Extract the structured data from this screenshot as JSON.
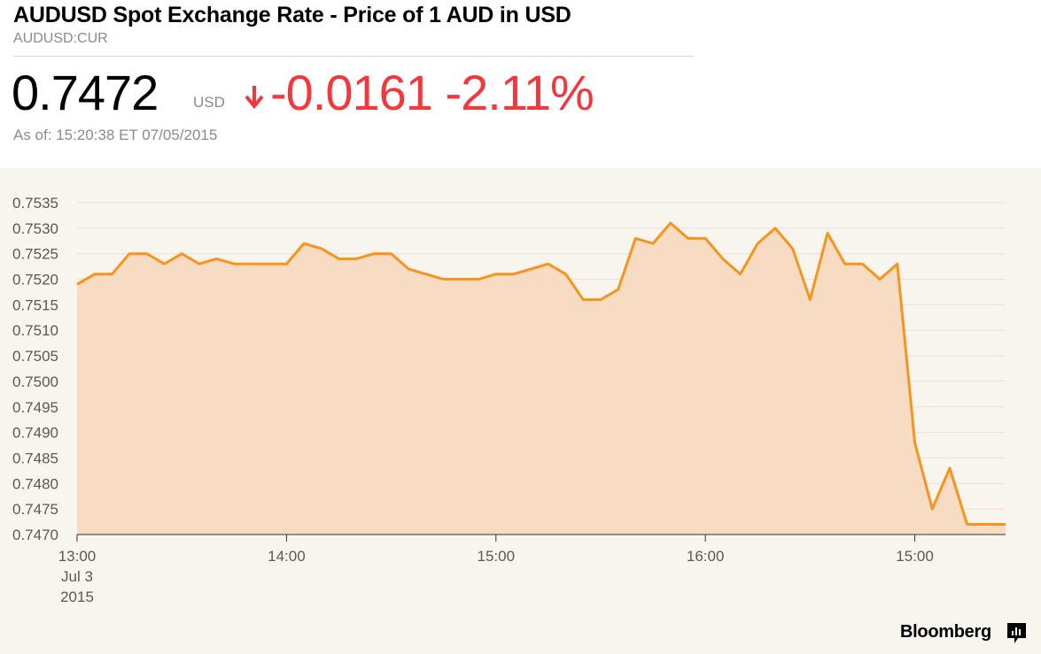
{
  "header": {
    "title": "AUDUSD Spot Exchange Rate - Price of 1 AUD in USD",
    "ticker": "AUDUSD:CUR",
    "price": "0.7472",
    "currency": "USD",
    "change": "-0.0161 -2.11%",
    "as_of": "As of: 15:20:38 ET 07/05/2015",
    "change_color": "#f2373d"
  },
  "brand": {
    "name": "Bloomberg",
    "icon": "bloomberg-bar-icon"
  },
  "chart_data": {
    "type": "area",
    "ylim": [
      0.747,
      0.7535
    ],
    "yticks": [
      "0.7535",
      "0.7530",
      "0.7525",
      "0.7520",
      "0.7515",
      "0.7510",
      "0.7505",
      "0.7500",
      "0.7495",
      "0.7490",
      "0.7485",
      "0.7480",
      "0.7475",
      "0.7470"
    ],
    "xticks": [
      {
        "label": "13:00",
        "t": 0
      },
      {
        "label": "14:00",
        "t": 60
      },
      {
        "label": "15:00",
        "t": 120
      },
      {
        "label": "16:00",
        "t": 180
      },
      {
        "label": "15:00",
        "t": 240
      }
    ],
    "xtick_sublabels": [
      "Jul 3",
      "2015"
    ],
    "t_range": [
      0,
      266
    ],
    "x_minutes": [
      0,
      5,
      10,
      15,
      20,
      25,
      30,
      35,
      40,
      45,
      50,
      55,
      60,
      65,
      70,
      75,
      80,
      85,
      90,
      95,
      100,
      105,
      110,
      115,
      120,
      125,
      130,
      135,
      140,
      145,
      150,
      155,
      160,
      165,
      170,
      175,
      180,
      185,
      190,
      195,
      200,
      205,
      210,
      215,
      220,
      225,
      230,
      235,
      240,
      245,
      250,
      255,
      260,
      266
    ],
    "values": [
      0.7519,
      0.7521,
      0.7521,
      0.7525,
      0.7525,
      0.7523,
      0.7525,
      0.7523,
      0.7524,
      0.7523,
      0.7523,
      0.7523,
      0.7523,
      0.7527,
      0.7526,
      0.7524,
      0.7524,
      0.7525,
      0.7525,
      0.7522,
      0.7521,
      0.752,
      0.752,
      0.752,
      0.7521,
      0.7521,
      0.7522,
      0.7523,
      0.7521,
      0.7516,
      0.7516,
      0.7518,
      0.7528,
      0.7527,
      0.7531,
      0.7528,
      0.7528,
      0.7524,
      0.7521,
      0.7527,
      0.753,
      0.7526,
      0.7516,
      0.7529,
      0.7523,
      0.7523,
      0.752,
      0.7523,
      0.7488,
      0.7475,
      0.7483,
      0.7472,
      0.7472,
      0.7472
    ],
    "line_color": "#f7941d",
    "fill_color": "#f7dcc3",
    "grid_color": "#e3e1d8",
    "background": "#f7f5ee",
    "grid": true
  }
}
